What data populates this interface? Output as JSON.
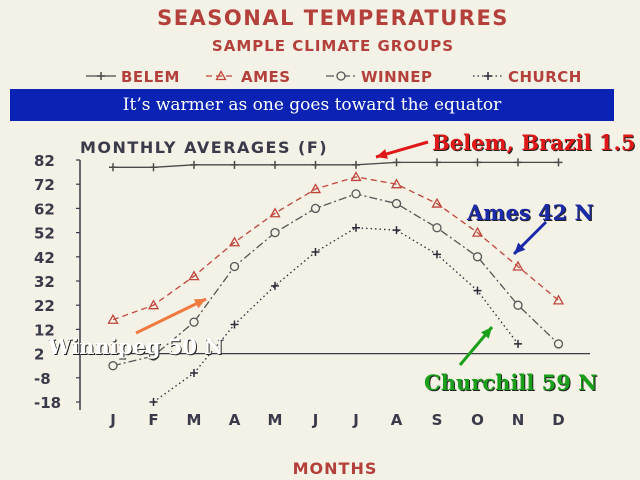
{
  "banner": "It’s warmer as one goes toward the equator",
  "callouts": {
    "belem": "Belem, Brazil 1.5",
    "ames": "Ames 42 N",
    "winnipeg": "Winnipeg 50 N",
    "churchill": "Churchill 59 N"
  },
  "colors": {
    "title": "#b3403a",
    "axis": "#3a3a4a",
    "belem": "#4a4a4a",
    "ames": "#c0463c",
    "winnipeg": "#555555",
    "churchill": "#2a2a3a",
    "banner_bg": "#0a23b4",
    "callout_belem": "#e01818",
    "callout_ames": "#1a2aa8",
    "callout_winnipeg": "#ffffff",
    "callout_churchill": "#1aa01a",
    "arrow_winnipeg": "#f07a40"
  },
  "chart_data": {
    "type": "line",
    "title": "SEASONAL TEMPERATURES",
    "subtitle": "SAMPLE CLIMATE GROUPS",
    "plot_label": "MONTHLY AVERAGES (F)",
    "xlabel": "MONTHS",
    "ylabel": "",
    "categories": [
      "J",
      "F",
      "M",
      "A",
      "M",
      "J",
      "J",
      "A",
      "S",
      "O",
      "N",
      "D"
    ],
    "ylim": [
      -18,
      82
    ],
    "yticks": [
      82,
      72,
      62,
      52,
      42,
      32,
      22,
      12,
      2,
      -8,
      -18
    ],
    "legend_position": "top",
    "series": [
      {
        "name": "BELEM",
        "marker": "plus",
        "line": "solid",
        "values": [
          79,
          79,
          80,
          80,
          80,
          80,
          80,
          81,
          81,
          81,
          81,
          81
        ]
      },
      {
        "name": "AMES",
        "marker": "triangle",
        "line": "dashed",
        "values": [
          16,
          22,
          34,
          48,
          60,
          70,
          75,
          72,
          64,
          52,
          38,
          24
        ]
      },
      {
        "name": "WINNEP",
        "marker": "circle",
        "line": "dashdot",
        "values": [
          -3,
          1,
          15,
          38,
          52,
          62,
          68,
          64,
          54,
          42,
          22,
          6
        ]
      },
      {
        "name": "CHURCH",
        "marker": "plus",
        "line": "dotted",
        "values": [
          null,
          -18,
          -6,
          14,
          30,
          44,
          54,
          53,
          43,
          28,
          6,
          null
        ]
      }
    ]
  }
}
